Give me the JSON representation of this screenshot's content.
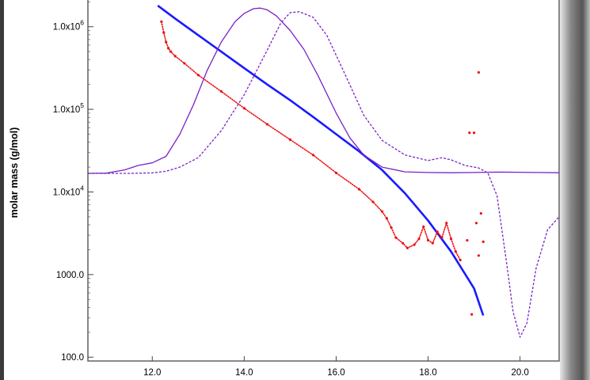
{
  "chart_data": {
    "type": "scatter",
    "title": "",
    "xlabel": "",
    "ylabel": "molar mass (g/mol)",
    "xlim": [
      10.6,
      20.85
    ],
    "ylim": [
      90,
      2200000
    ],
    "y_scale": "log",
    "grid": false,
    "x_ticks": [
      {
        "value": 12.0,
        "label": "12.0"
      },
      {
        "value": 14.0,
        "label": "14.0"
      },
      {
        "value": 16.0,
        "label": "16.0"
      },
      {
        "value": 18.0,
        "label": "18.0"
      },
      {
        "value": 20.0,
        "label": "20.0"
      }
    ],
    "y_ticks": [
      {
        "value": 100,
        "label": "100.0",
        "kind": "plain"
      },
      {
        "value": 1000,
        "label": "1000.0",
        "kind": "plain"
      },
      {
        "value": 10000,
        "mantissa": "1.0x10",
        "exponent": "4",
        "kind": "sci"
      },
      {
        "value": 100000,
        "mantissa": "1.0x10",
        "exponent": "5",
        "kind": "sci"
      },
      {
        "value": 1000000,
        "mantissa": "1.0x10",
        "exponent": "6",
        "kind": "sci"
      }
    ],
    "series": [
      {
        "color": "#1a1aff",
        "style": "line",
        "x": [
          12.12,
          12.5,
          13.0,
          13.5,
          14.0,
          14.5,
          15.0,
          15.5,
          16.0,
          16.5,
          17.0,
          17.5,
          18.0,
          18.5,
          19.0,
          19.2
        ],
        "y": [
          1800000,
          1250000,
          790000,
          500000,
          315000,
          200000,
          129000,
          81000,
          50000,
          31000,
          18400,
          9600,
          4500,
          1900,
          680,
          320
        ]
      },
      {
        "color": "#ee1111",
        "style": "points",
        "x": [
          12.2,
          12.25,
          12.3,
          12.35,
          12.4,
          12.5,
          12.7,
          13.0,
          13.5,
          14.0,
          14.5,
          15.0,
          15.5,
          16.0,
          16.5,
          16.8,
          17.0,
          17.1,
          17.2,
          17.3,
          17.45,
          17.55,
          17.7,
          17.8,
          17.9,
          18.0,
          18.1,
          18.2,
          18.3,
          18.4,
          18.5,
          18.6,
          18.7
        ],
        "y": [
          1150000,
          850000,
          650000,
          550000,
          500000,
          440000,
          360000,
          260000,
          165000,
          103000,
          66000,
          43000,
          28000,
          17000,
          10800,
          7600,
          5800,
          4800,
          3700,
          2800,
          2400,
          2100,
          2300,
          2700,
          3800,
          2600,
          2400,
          3300,
          2800,
          4200,
          2700,
          1900,
          1500
        ]
      },
      {
        "color": "#7b22c7",
        "style": "solid",
        "x": [
          10.6,
          11.0,
          11.4,
          11.7,
          12.0,
          12.3,
          12.6,
          12.9,
          13.2,
          13.5,
          13.8,
          14.0,
          14.2,
          14.35,
          14.5,
          14.7,
          15.0,
          15.3,
          15.6,
          16.0,
          16.3,
          16.6,
          17.0,
          17.5,
          18.0,
          18.5,
          19.0,
          19.5,
          20.0,
          20.4,
          20.85
        ],
        "y": [
          16800,
          16900,
          18500,
          21000,
          22500,
          27000,
          50000,
          115000,
          300000,
          650000,
          1150000,
          1450000,
          1650000,
          1680000,
          1600000,
          1350000,
          900000,
          530000,
          260000,
          90000,
          45000,
          28000,
          20000,
          17500,
          17200,
          17100,
          17200,
          17400,
          17300,
          17200,
          17100
        ]
      },
      {
        "color": "#7b22c7",
        "style": "dashed",
        "x": [
          10.6,
          11.5,
          12.0,
          12.3,
          12.6,
          13.0,
          13.5,
          14.0,
          14.5,
          14.8,
          15.0,
          15.2,
          15.5,
          15.8,
          16.2,
          16.6,
          17.0,
          17.5,
          18.0,
          18.3,
          18.5,
          18.8,
          19.1,
          19.3,
          19.5,
          19.7,
          19.85,
          20.0,
          20.15,
          20.35,
          20.6,
          20.85
        ],
        "y": [
          16800,
          16800,
          17000,
          17800,
          20000,
          26000,
          55000,
          150000,
          520000,
          1120000,
          1480000,
          1520000,
          1300000,
          780000,
          260000,
          85000,
          42000,
          28000,
          24000,
          26000,
          24500,
          21000,
          19500,
          17000,
          9000,
          1500,
          350,
          175,
          260,
          1200,
          3500,
          5000
        ]
      }
    ],
    "outliers": {
      "color": "#ee1111",
      "x": [
        19.1,
        19.0,
        18.9,
        19.15,
        19.05,
        18.85,
        19.2,
        19.1,
        18.95
      ],
      "y": [
        280000,
        52000,
        52000,
        5500,
        4200,
        2600,
        2500,
        1700,
        330
      ]
    }
  }
}
